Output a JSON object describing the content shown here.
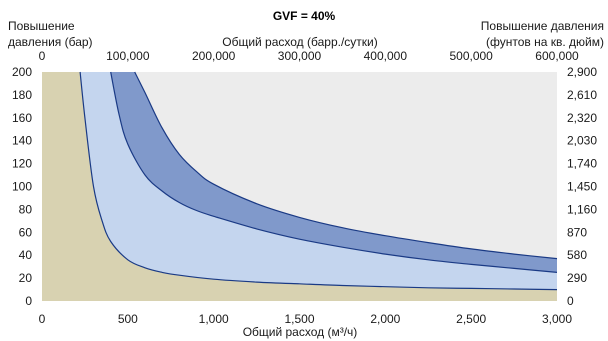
{
  "chart_data": {
    "type": "area",
    "title": "GVF = 40%",
    "xlabel": "Общий расход (м³/ч)",
    "x2label": "Общий расход (барр./сутки)",
    "ylabel": "Повышение давления (бар)",
    "ylabel_lines": [
      "Повышение",
      "давления (бар)"
    ],
    "y2label": "Повышение давления (фунтов на кв. дюйм)",
    "y2label_lines": [
      "Повышение давления",
      "(фунтов на кв. дюйм)"
    ],
    "xlim": [
      0,
      3000
    ],
    "ylim": [
      0,
      200
    ],
    "x2lim": [
      0,
      600000
    ],
    "y2lim": [
      0,
      2900
    ],
    "x_ticks": [
      0,
      500,
      1000,
      1500,
      2000,
      2500,
      3000
    ],
    "x_tick_labels": [
      "0",
      "500",
      "1,000",
      "1,500",
      "2,000",
      "2,500",
      "3,000"
    ],
    "y_ticks": [
      0,
      20,
      40,
      60,
      80,
      100,
      120,
      140,
      160,
      180,
      200
    ],
    "y_tick_labels": [
      "0",
      "20",
      "40",
      "60",
      "80",
      "100",
      "120",
      "140",
      "160",
      "180",
      "200"
    ],
    "x2_ticks": [
      0,
      100000,
      200000,
      300000,
      400000,
      500000,
      600000
    ],
    "x2_tick_labels": [
      "0",
      "100,000",
      "200,000",
      "300,000",
      "400,000",
      "500,000",
      "600,000"
    ],
    "y2_ticks": [
      0,
      290,
      580,
      870,
      1160,
      1450,
      1740,
      2030,
      2320,
      2610,
      2900
    ],
    "y2_tick_labels": [
      "0",
      "290",
      "580",
      "870",
      "1,160",
      "1,450",
      "1,740",
      "2,030",
      "2,320",
      "2,610",
      "2,900"
    ],
    "colors": {
      "background": "#ececec",
      "outer_region": "#d8d2b1",
      "light_band": "#c4d5ee",
      "dark_band": "#8099cb",
      "curve": "#1a3a85"
    },
    "series": [
      {
        "x": [
          222,
          250,
          300,
          350,
          400,
          500,
          600,
          700,
          800,
          1000,
          1250,
          1500,
          1750,
          2000,
          2250,
          2500,
          2750,
          3000
        ],
        "values": [
          200,
          160,
          100,
          70,
          52,
          36,
          29,
          25,
          22.5,
          19,
          16.5,
          15,
          13.5,
          12.5,
          11.5,
          11,
          10.5,
          10
        ]
      },
      {
        "x": [
          400,
          450,
          500,
          600,
          700,
          800,
          900,
          1000,
          1250,
          1500,
          1750,
          2000,
          2250,
          2500,
          2750,
          3000
        ],
        "values": [
          200,
          162,
          137,
          110,
          96,
          86,
          79,
          74,
          63,
          54,
          47,
          41,
          36,
          32,
          28.5,
          25
        ]
      },
      {
        "x": [
          540,
          600,
          700,
          800,
          900,
          1000,
          1250,
          1500,
          1750,
          2000,
          2250,
          2500,
          2750,
          3000
        ],
        "values": [
          200,
          182,
          151,
          128,
          113,
          102,
          85,
          73,
          64,
          57,
          51,
          45.5,
          41,
          37
        ]
      }
    ]
  }
}
